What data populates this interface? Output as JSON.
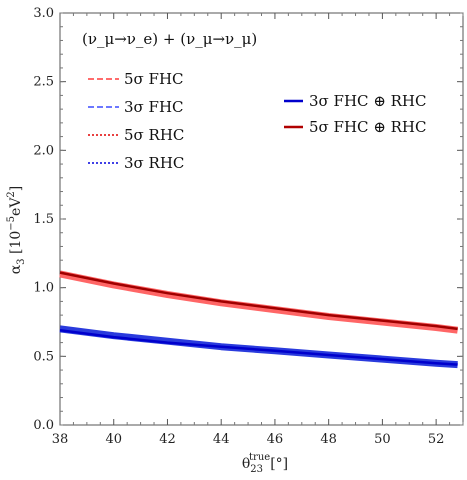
{
  "chart_data": {
    "type": "line",
    "annotation": "(ν_μ→ν_e) + (ν_μ→ν_μ)",
    "xlabel": "θ23true [°]",
    "ylabel": "α3 [10⁻⁵eV²]",
    "xlim": [
      38,
      53
    ],
    "ylim": [
      0,
      3
    ],
    "x_ticks": [
      "38",
      "40",
      "42",
      "44",
      "46",
      "48",
      "50",
      "52"
    ],
    "y_ticks": [
      "0.0",
      "0.5",
      "1.0",
      "1.5",
      "2.0",
      "2.5",
      "3.0"
    ],
    "grid": false,
    "legend_left": [
      {
        "label": "5σ FHC",
        "color": "#ff3b3b",
        "style": "dashed"
      },
      {
        "label": "3σ FHC",
        "color": "#3b4bff",
        "style": "dashed"
      },
      {
        "label": "5σ RHC",
        "color": "#e00000",
        "style": "dotted"
      },
      {
        "label": "3σ RHC",
        "color": "#0000dd",
        "style": "dotted"
      }
    ],
    "legend_right": [
      {
        "label": "3σ FHC ⊕ RHC",
        "color": "#0000cc",
        "style": "solid"
      },
      {
        "label": "5σ FHC ⊕ RHC",
        "color": "#b00000",
        "style": "solid"
      }
    ],
    "x": [
      38,
      40,
      42,
      44,
      46,
      48,
      50,
      52,
      52.8
    ],
    "series": [
      {
        "name": "5σ FHC",
        "color": "#ff6666",
        "values": [
          1.1,
          1.02,
          0.95,
          0.89,
          0.84,
          0.79,
          0.75,
          0.71,
          0.69
        ]
      },
      {
        "name": "3σ FHC",
        "color": "#2a3bdd",
        "values": [
          0.7,
          0.65,
          0.61,
          0.57,
          0.54,
          0.51,
          0.48,
          0.45,
          0.44
        ]
      },
      {
        "name": "5σ RHC",
        "color": "#ff6666",
        "values": [
          1.1,
          1.02,
          0.95,
          0.89,
          0.84,
          0.79,
          0.75,
          0.71,
          0.69
        ]
      },
      {
        "name": "3σ RHC",
        "color": "#2a3bdd",
        "values": [
          0.7,
          0.65,
          0.61,
          0.57,
          0.54,
          0.51,
          0.48,
          0.45,
          0.44
        ]
      },
      {
        "name": "3σ FHC ⊕ RHC",
        "color": "#0000cc",
        "values": [
          0.69,
          0.64,
          0.6,
          0.57,
          0.54,
          0.51,
          0.48,
          0.45,
          0.44
        ]
      },
      {
        "name": "5σ FHC ⊕ RHC",
        "color": "#a00000",
        "values": [
          1.11,
          1.03,
          0.96,
          0.9,
          0.85,
          0.8,
          0.76,
          0.72,
          0.7
        ]
      }
    ]
  }
}
